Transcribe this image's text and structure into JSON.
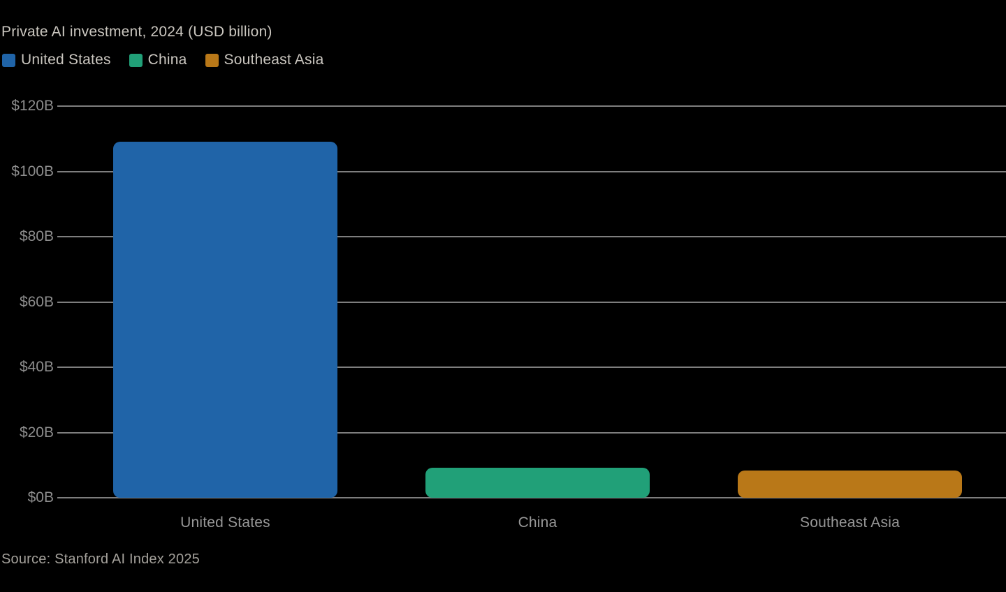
{
  "header": {
    "title": "Private AI investment, 2024 (USD billion)"
  },
  "legend": {
    "items": [
      {
        "label": "United States",
        "color": "#2064a8"
      },
      {
        "label": "China",
        "color": "#21a078"
      },
      {
        "label": "Southeast Asia",
        "color": "#b97818"
      }
    ]
  },
  "footer": {
    "source": "Source: Stanford AI Index 2025"
  },
  "chart_data": {
    "type": "bar",
    "title": "Private AI investment, 2024 (USD billion)",
    "categories": [
      "United States",
      "China",
      "Southeast Asia"
    ],
    "values": [
      109.1,
      9.3,
      8.4
    ],
    "bar_colors": [
      "#2064a8",
      "#21a078",
      "#b97818"
    ],
    "xlabel": "",
    "ylabel": "",
    "ylim": [
      0,
      120
    ],
    "ytick_step": 20,
    "yticks": [
      {
        "value": 0,
        "label": "$0B"
      },
      {
        "value": 20,
        "label": "$20B"
      },
      {
        "value": 40,
        "label": "$40B"
      },
      {
        "value": 60,
        "label": "$60B"
      },
      {
        "value": 80,
        "label": "$80B"
      },
      {
        "value": 100,
        "label": "$100B"
      },
      {
        "value": 120,
        "label": "$120B"
      }
    ],
    "grid": true,
    "legend_position": "top-left",
    "source": "Source: Stanford AI Index 2025",
    "colors": {
      "background": "#000000",
      "title_text": "#cbc7c0",
      "axis_text": "#8d8d8d",
      "category_text": "#979797",
      "source_text": "#a4a19b",
      "gridline": "#7e7e7e"
    }
  }
}
